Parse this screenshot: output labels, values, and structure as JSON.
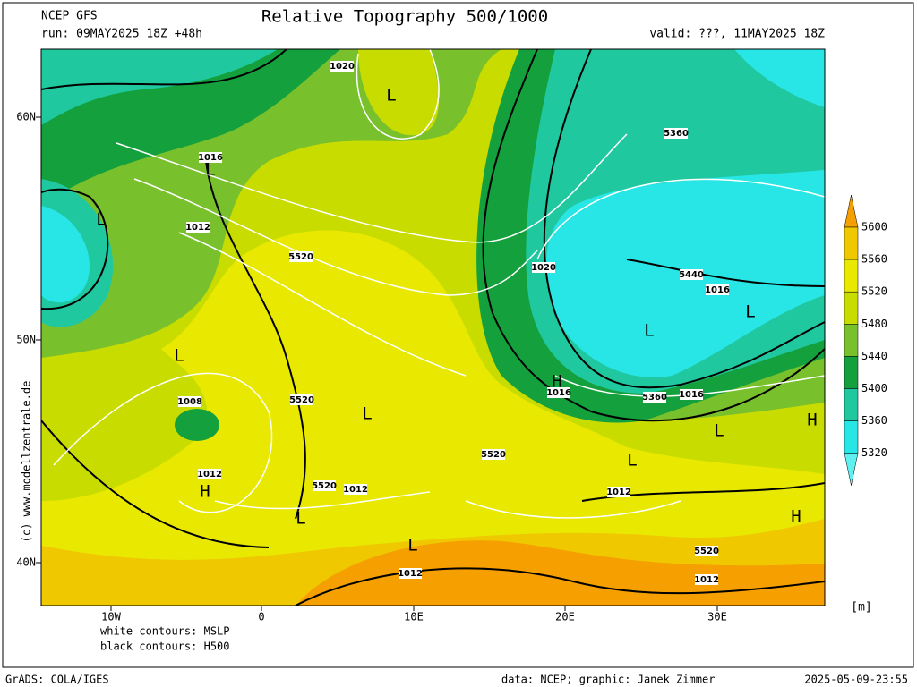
{
  "header": {
    "model": "NCEP GFS",
    "title": "Relative Topography 500/1000",
    "run": "run: 09MAY2025 18Z +48h",
    "valid": "valid: ???, 11MAY2025 18Z"
  },
  "axes": {
    "lat_labels": [
      "60N",
      "50N",
      "40N"
    ],
    "lon_labels": [
      "10W",
      "0",
      "10E",
      "20E",
      "30E"
    ]
  },
  "colorbar": {
    "levels": [
      5600,
      5560,
      5520,
      5480,
      5440,
      5400,
      5360,
      5320
    ],
    "colors": [
      "#f5a000",
      "#f0c800",
      "#e8e800",
      "#c8dc00",
      "#78c02c",
      "#14a03c",
      "#20c8a0",
      "#28e6e6",
      "#60f0f0"
    ],
    "unit": "[m]"
  },
  "legend": [
    "white contours: MSLP",
    "black contours: H500"
  ],
  "credit": "(c) www.modellzentrale.de",
  "map_labels": [
    "1020",
    "L",
    "1016",
    "L",
    "1012",
    "L",
    "5520",
    "L",
    "1008",
    "1012",
    "H",
    "5520",
    "1012",
    "L",
    "L",
    "H",
    "1016",
    "1020",
    "5360",
    "5440",
    "1016",
    "L",
    "L",
    "5360",
    "1016",
    "H",
    "L",
    "L",
    "5520",
    "1012",
    "1012",
    "L",
    "5520",
    "1012",
    "H",
    "5520"
  ],
  "footer": {
    "left": "GrADS: COLA/IGES",
    "center": "data: NCEP; graphic: Janek Zimmer",
    "right": "2025-05-09-23:55"
  }
}
